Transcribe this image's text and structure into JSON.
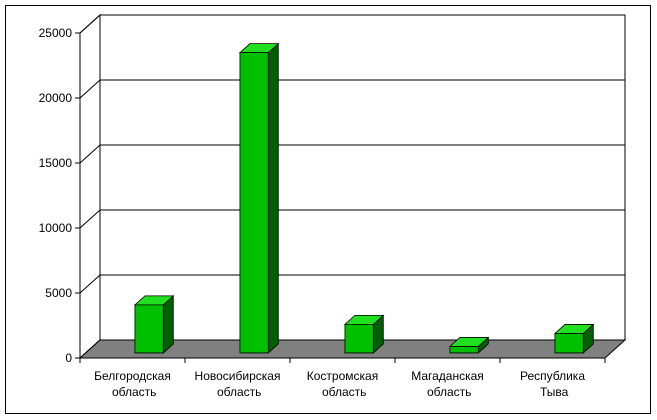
{
  "chart_data": {
    "type": "bar3d",
    "categories": [
      "Белгородская область",
      "Новосибирская область",
      "Костромская область",
      "Магаданская область",
      "Республика Тыва"
    ],
    "values": [
      3700,
      23100,
      2200,
      500,
      1500
    ],
    "color": "#00c000",
    "ylim": [
      0,
      25000
    ],
    "yticks": [
      0,
      5000,
      10000,
      15000,
      20000,
      25000
    ],
    "grid": true
  }
}
